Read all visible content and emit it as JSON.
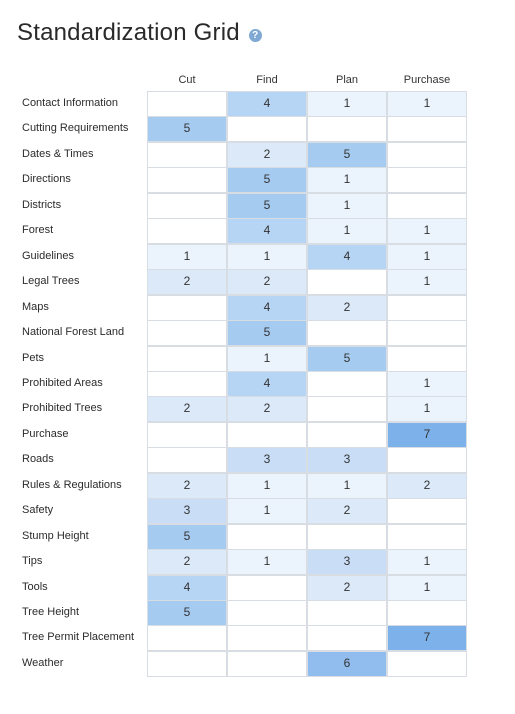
{
  "title": "Standardization Grid",
  "help_icon": "question-circle-icon",
  "chart_data": {
    "type": "heatmap",
    "title": "Standardization Grid",
    "columns": [
      "Cut",
      "Find",
      "Plan",
      "Purchase Permit"
    ],
    "rows": [
      "Contact Information",
      "Cutting Requirements",
      "Dates & Times",
      "Directions",
      "Districts",
      "Forest",
      "Guidelines",
      "Legal Trees",
      "Maps",
      "National Forest Land",
      "Pets",
      "Prohibited Areas",
      "Prohibited Trees",
      "Purchase",
      "Roads",
      "Rules & Regulations",
      "Safety",
      "Stump Height",
      "Tips",
      "Tools",
      "Tree Height",
      "Tree Permit Placement",
      "Weather"
    ],
    "values": [
      [
        null,
        4,
        1,
        1
      ],
      [
        5,
        null,
        null,
        null
      ],
      [
        null,
        2,
        5,
        null
      ],
      [
        null,
        5,
        1,
        null
      ],
      [
        null,
        5,
        1,
        null
      ],
      [
        null,
        4,
        1,
        1
      ],
      [
        1,
        1,
        4,
        1
      ],
      [
        2,
        2,
        null,
        1
      ],
      [
        null,
        4,
        2,
        null
      ],
      [
        null,
        5,
        null,
        null
      ],
      [
        null,
        1,
        5,
        null
      ],
      [
        null,
        4,
        null,
        1
      ],
      [
        2,
        2,
        null,
        1
      ],
      [
        null,
        null,
        null,
        7
      ],
      [
        null,
        3,
        3,
        null
      ],
      [
        2,
        1,
        1,
        2
      ],
      [
        3,
        1,
        2,
        null
      ],
      [
        5,
        null,
        null,
        null
      ],
      [
        2,
        1,
        3,
        1
      ],
      [
        4,
        null,
        2,
        1
      ],
      [
        5,
        null,
        null,
        null
      ],
      [
        null,
        null,
        null,
        7
      ],
      [
        null,
        null,
        6,
        null
      ]
    ],
    "color_scale": {
      "empty": "#ffffff",
      "1": "#ebf3fd",
      "2": "#dce9f9",
      "3": "#c9def6",
      "4": "#b6d4f4",
      "5": "#a6cbf1",
      "6": "#90bcee",
      "7": "#7db1ea"
    }
  }
}
